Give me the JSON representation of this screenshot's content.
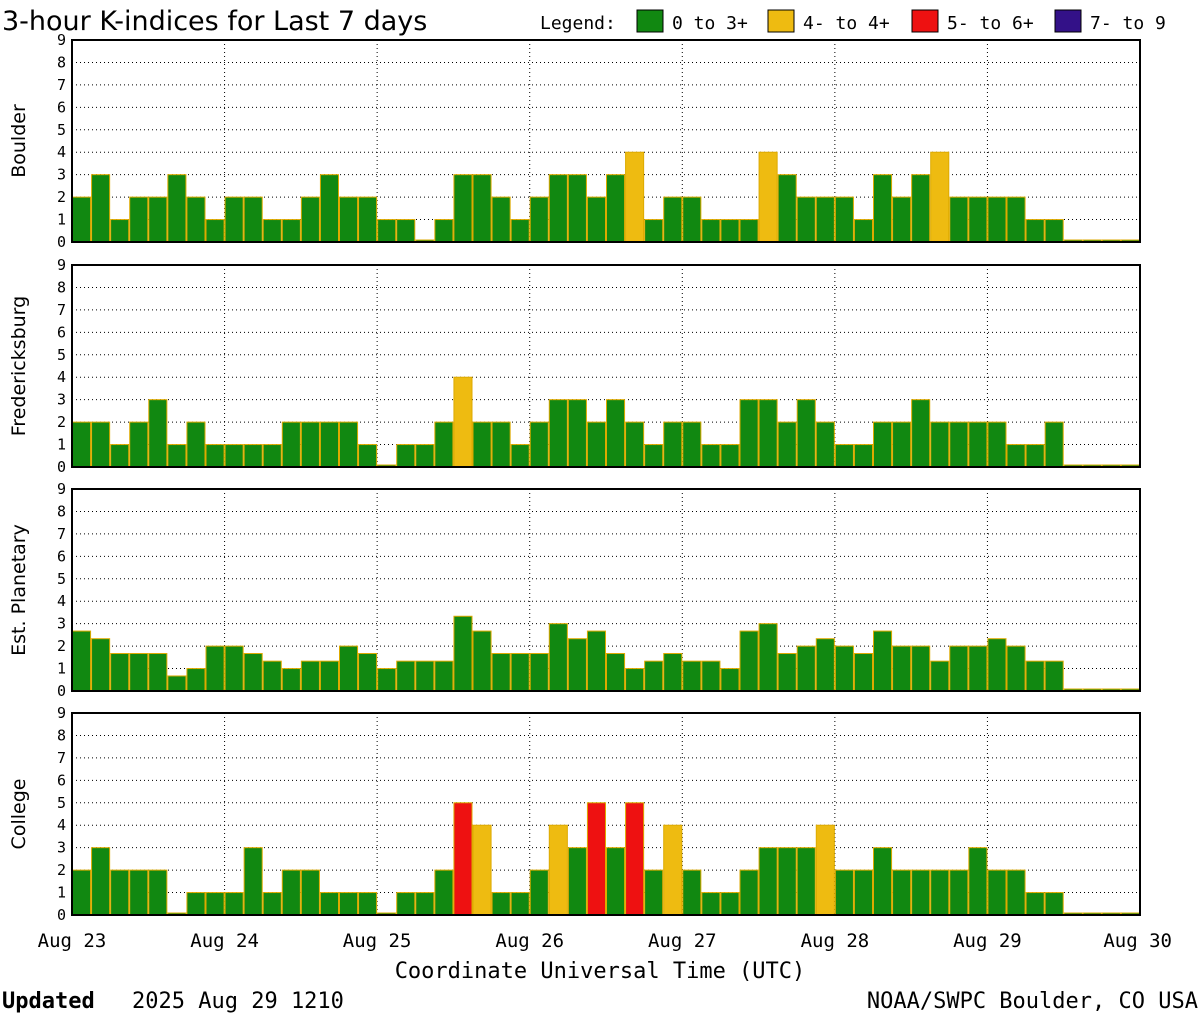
{
  "chart_data": {
    "type": "bar",
    "title": "3-hour K-indices for Last 7 days",
    "legend": {
      "label": "Legend:",
      "placement": "top-right",
      "entries": [
        {
          "label": "0 to 3+",
          "color": "#118811"
        },
        {
          "label": "4- to 4+",
          "color": "#eebb11"
        },
        {
          "label": "5- to 6+",
          "color": "#ee1111"
        },
        {
          "label": "7- to 9",
          "color": "#331188"
        }
      ]
    },
    "xlabel": "Coordinate Universal Time (UTC)",
    "x_tick_labels": [
      "Aug 23",
      "Aug 24",
      "Aug 25",
      "Aug 26",
      "Aug 27",
      "Aug 28",
      "Aug 29",
      "Aug 30"
    ],
    "bin_hours": 3,
    "ylim": [
      0,
      9
    ],
    "y_ticks": [
      0,
      1,
      2,
      3,
      4,
      5,
      6,
      7,
      8,
      9
    ],
    "grid": true,
    "panels": [
      {
        "station": "Boulder",
        "values": [
          2,
          3,
          1,
          2,
          2,
          3,
          2,
          1,
          2,
          2,
          1,
          1,
          2,
          3,
          2,
          2,
          1,
          1,
          0,
          1,
          3,
          3,
          2,
          1,
          2,
          3,
          3,
          2,
          3,
          4,
          1,
          2,
          2,
          1,
          1,
          1,
          4,
          3,
          2,
          2,
          2,
          1,
          3,
          2,
          3,
          4,
          2,
          2,
          2,
          2,
          1,
          1,
          0,
          0,
          0,
          0
        ]
      },
      {
        "station": "Fredericksburg",
        "values": [
          2,
          2,
          1,
          2,
          3,
          1,
          2,
          1,
          1,
          1,
          1,
          2,
          2,
          2,
          2,
          1,
          0,
          1,
          1,
          2,
          4,
          2,
          2,
          1,
          2,
          3,
          3,
          2,
          3,
          2,
          1,
          2,
          2,
          1,
          1,
          3,
          3,
          2,
          3,
          2,
          1,
          1,
          2,
          2,
          3,
          2,
          2,
          2,
          2,
          1,
          1,
          2,
          0,
          0,
          0,
          0
        ]
      },
      {
        "station": "Est. Planetary",
        "values": [
          2.67,
          2.33,
          1.67,
          1.67,
          1.67,
          0.67,
          1.0,
          2.0,
          2.0,
          1.67,
          1.33,
          1.0,
          1.33,
          1.33,
          2.0,
          1.67,
          1.0,
          1.33,
          1.33,
          1.33,
          3.33,
          2.67,
          1.67,
          1.67,
          1.67,
          3.0,
          2.33,
          2.67,
          1.67,
          1.0,
          1.33,
          1.67,
          1.33,
          1.33,
          1.0,
          2.67,
          3.0,
          1.67,
          2.0,
          2.33,
          2.0,
          1.67,
          2.67,
          2.0,
          2.0,
          1.33,
          2.0,
          2.0,
          2.33,
          2.0,
          1.33,
          1.33,
          0,
          0,
          0,
          0
        ]
      },
      {
        "station": "College",
        "values": [
          2,
          3,
          2,
          2,
          2,
          0,
          1,
          1,
          1,
          3,
          1,
          2,
          2,
          1,
          1,
          1,
          0,
          1,
          1,
          2,
          5,
          4,
          1,
          1,
          2,
          4,
          3,
          5,
          3,
          5,
          2,
          4,
          2,
          1,
          1,
          2,
          3,
          3,
          3,
          4,
          2,
          2,
          3,
          2,
          2,
          2,
          2,
          3,
          2,
          2,
          1,
          1,
          0,
          0,
          0,
          0
        ]
      }
    ]
  },
  "footer": {
    "updated_label": "Updated",
    "updated_value": "2025 Aug 29 1210",
    "source": "NOAA/SWPC Boulder, CO USA"
  }
}
